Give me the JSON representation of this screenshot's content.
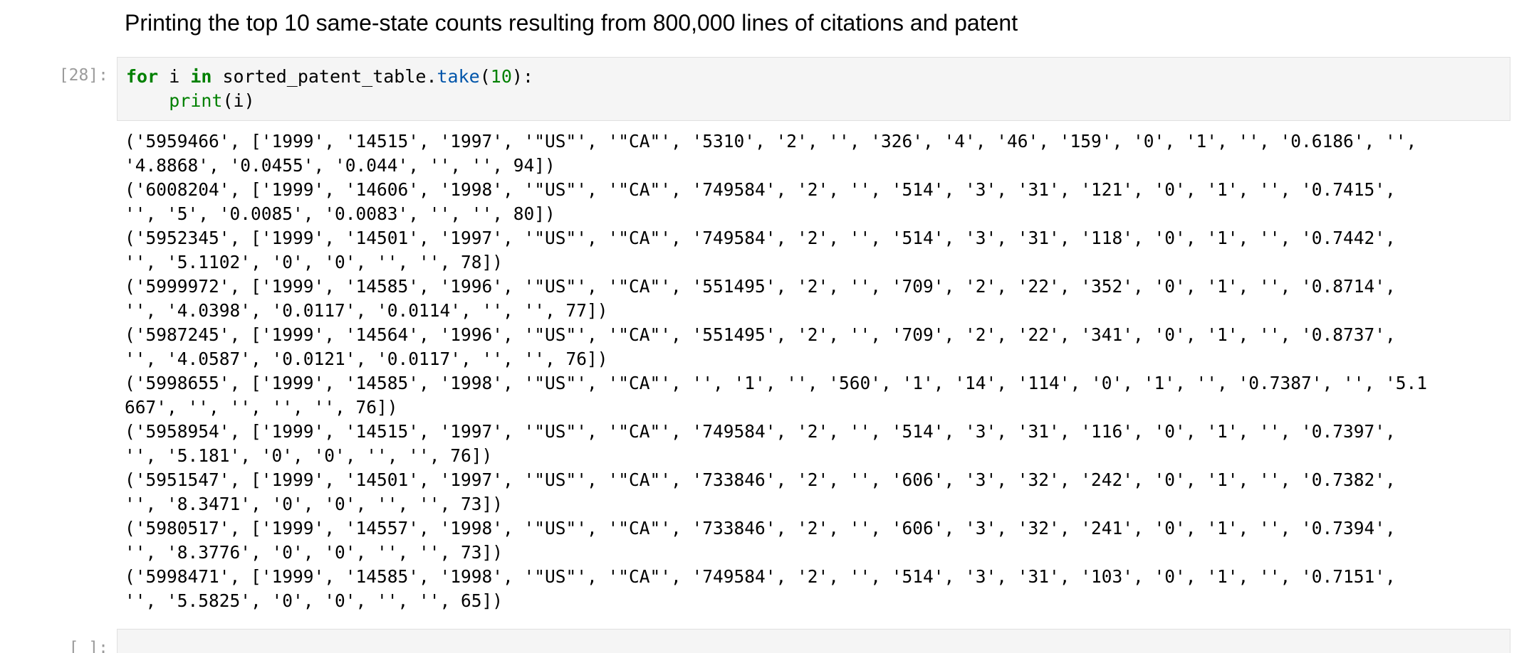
{
  "markdown": {
    "heading": "Printing the top 10 same-state counts resulting from 800,000 lines of citations and patent"
  },
  "code_cell": {
    "prompt": "[28]:",
    "line1": {
      "kw_for": "for",
      "var": " i ",
      "kw_in": "in",
      "obj": " sorted_patent_table.",
      "method": "take",
      "open": "(",
      "arg": "10",
      "close": "):"
    },
    "line2": {
      "indent": "    ",
      "func": "print",
      "args": "(i)"
    }
  },
  "output_lines": [
    "('5959466', ['1999', '14515', '1997', '\"US\"', '\"CA\"', '5310', '2', '', '326', '4', '46', '159', '0', '1', '', '0.6186', '',",
    "'4.8868', '0.0455', '0.044', '', '', 94])",
    "('6008204', ['1999', '14606', '1998', '\"US\"', '\"CA\"', '749584', '2', '', '514', '3', '31', '121', '0', '1', '', '0.7415',",
    "'', '5', '0.0085', '0.0083', '', '', 80])",
    "('5952345', ['1999', '14501', '1997', '\"US\"', '\"CA\"', '749584', '2', '', '514', '3', '31', '118', '0', '1', '', '0.7442',",
    "'', '5.1102', '0', '0', '', '', 78])",
    "('5999972', ['1999', '14585', '1996', '\"US\"', '\"CA\"', '551495', '2', '', '709', '2', '22', '352', '0', '1', '', '0.8714',",
    "'', '4.0398', '0.0117', '0.0114', '', '', 77])",
    "('5987245', ['1999', '14564', '1996', '\"US\"', '\"CA\"', '551495', '2', '', '709', '2', '22', '341', '0', '1', '', '0.8737',",
    "'', '4.0587', '0.0121', '0.0117', '', '', 76])",
    "('5998655', ['1999', '14585', '1998', '\"US\"', '\"CA\"', '', '1', '', '560', '1', '14', '114', '0', '1', '', '0.7387', '', '5.1",
    "667', '', '', '', '', 76])",
    "('5958954', ['1999', '14515', '1997', '\"US\"', '\"CA\"', '749584', '2', '', '514', '3', '31', '116', '0', '1', '', '0.7397',",
    "'', '5.181', '0', '0', '', '', 76])",
    "('5951547', ['1999', '14501', '1997', '\"US\"', '\"CA\"', '733846', '2', '', '606', '3', '32', '242', '0', '1', '', '0.7382',",
    "'', '8.3471', '0', '0', '', '', 73])",
    "('5980517', ['1999', '14557', '1998', '\"US\"', '\"CA\"', '733846', '2', '', '606', '3', '32', '241', '0', '1', '', '0.7394',",
    "'', '8.3776', '0', '0', '', '', 73])",
    "('5998471', ['1999', '14585', '1998', '\"US\"', '\"CA\"', '749584', '2', '', '514', '3', '31', '103', '0', '1', '', '0.7151',",
    "'', '5.5825', '0', '0', '', '', 65])"
  ],
  "next_cell": {
    "prompt": "[ ]:"
  }
}
